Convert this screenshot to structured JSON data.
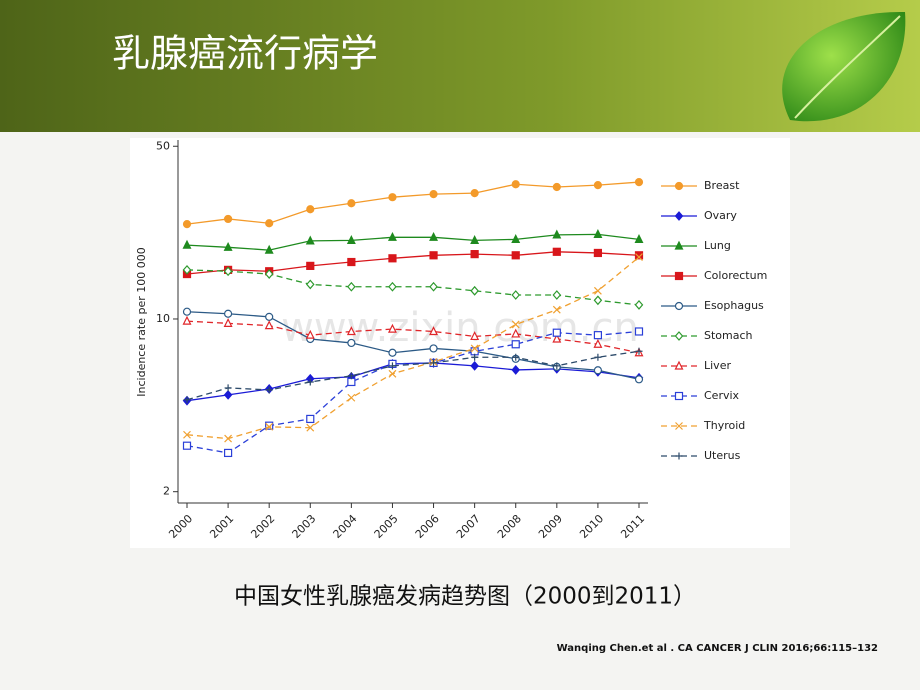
{
  "header": {
    "title": "乳腺癌流行病学"
  },
  "chart_data": {
    "type": "line",
    "ylabel": "Incidence rate per 100 000",
    "categories": [
      "2000",
      "2001",
      "2002",
      "2003",
      "2004",
      "2005",
      "2006",
      "2007",
      "2008",
      "2009",
      "2010",
      "2011"
    ],
    "log_y": true,
    "ylim": [
      1.8,
      53
    ],
    "yticks": [
      2,
      10,
      50
    ],
    "legend": "right",
    "series": [
      {
        "name": "Breast",
        "color": "#f39a2a",
        "marker": "circle",
        "dashed": false,
        "values": [
          24.2,
          25.4,
          24.4,
          27.8,
          29.4,
          31.1,
          32.0,
          32.3,
          35.1,
          34.2,
          34.8,
          35.8
        ]
      },
      {
        "name": "Ovary",
        "color": "#1b1bd6",
        "marker": "diamond",
        "dashed": false,
        "values": [
          4.67,
          4.93,
          5.21,
          5.73,
          5.83,
          6.58,
          6.64,
          6.46,
          6.22,
          6.28,
          6.11,
          5.78
        ]
      },
      {
        "name": "Lung",
        "color": "#1e8a1e",
        "marker": "triangle",
        "dashed": false,
        "values": [
          19.9,
          19.5,
          19.0,
          20.7,
          20.8,
          21.4,
          21.4,
          20.8,
          21.0,
          21.9,
          22.0,
          21.0
        ]
      },
      {
        "name": "Colorectum",
        "color": "#d8161b",
        "marker": "square",
        "dashed": false,
        "values": [
          15.2,
          15.8,
          15.6,
          16.4,
          17.0,
          17.6,
          18.1,
          18.3,
          18.1,
          18.7,
          18.5,
          18.1
        ]
      },
      {
        "name": "Esophagus",
        "color": "#2c5a86",
        "marker": "circle-open",
        "dashed": false,
        "values": [
          10.7,
          10.5,
          10.2,
          8.3,
          8.0,
          7.3,
          7.6,
          7.4,
          6.9,
          6.4,
          6.2,
          5.7
        ]
      },
      {
        "name": "Stomach",
        "color": "#2e9a2e",
        "marker": "diamond-open",
        "dashed": true,
        "values": [
          15.8,
          15.6,
          15.2,
          13.8,
          13.5,
          13.5,
          13.5,
          13.0,
          12.5,
          12.5,
          11.9,
          11.4
        ]
      },
      {
        "name": "Liver",
        "color": "#e0262a",
        "marker": "triangle-open",
        "dashed": true,
        "values": [
          9.8,
          9.6,
          9.4,
          8.6,
          8.9,
          9.1,
          8.9,
          8.5,
          8.7,
          8.3,
          7.9,
          7.3
        ]
      },
      {
        "name": "Cervix",
        "color": "#2a3fd8",
        "marker": "square-open",
        "dashed": true,
        "values": [
          3.07,
          2.87,
          3.7,
          3.94,
          5.56,
          6.58,
          6.64,
          7.4,
          7.9,
          8.8,
          8.6,
          8.9
        ]
      },
      {
        "name": "Thyroid",
        "color": "#f0a030",
        "marker": "x",
        "dashed": true,
        "values": [
          3.4,
          3.28,
          3.66,
          3.63,
          4.8,
          6.0,
          6.7,
          7.6,
          9.5,
          10.9,
          13.0,
          17.8
        ]
      },
      {
        "name": "Uterus",
        "color": "#2c4a6a",
        "marker": "plus",
        "dashed": true,
        "values": [
          4.71,
          5.26,
          5.16,
          5.56,
          5.89,
          6.46,
          6.64,
          7.0,
          7.0,
          6.46,
          7.0,
          7.4
        ]
      }
    ]
  },
  "watermark": "www.zixin.com.cn",
  "caption": "中国女性乳腺癌发病趋势图（2000到2011）",
  "citation": "Wanqing Chen.et al . CA CANCER J CLIN 2016;66:115–132"
}
